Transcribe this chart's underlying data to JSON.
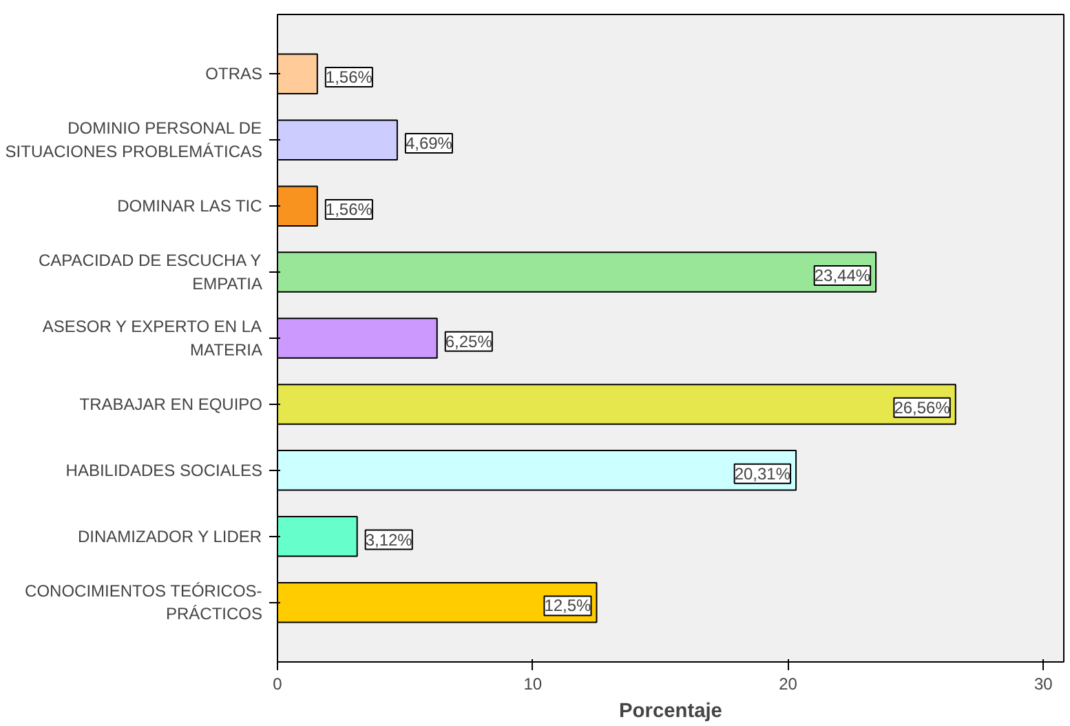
{
  "chart_data": {
    "type": "bar",
    "orientation": "horizontal",
    "xlabel": "Porcentaje",
    "categories": [
      "OTRAS",
      "DOMINIO PERSONAL DE\nSITUACIONES PROBLEMÁTICAS",
      "DOMINAR LAS TIC",
      "CAPACIDAD DE ESCUCHA Y\nEMPATIA",
      "ASESOR Y EXPERTO EN LA\nMATERIA",
      "TRABAJAR EN EQUIPO",
      "HABILIDADES SOCIALES",
      "DINAMIZADOR Y LIDER",
      "CONOCIMIENTOS TEÓRICOS-\nPRÁCTICOS"
    ],
    "values": [
      1.56,
      4.69,
      1.56,
      23.44,
      6.25,
      26.56,
      20.31,
      3.12,
      12.5
    ],
    "colors": [
      "#ffcc99",
      "#ccccff",
      "#f7931e",
      "#99e699",
      "#cc99ff",
      "#e6e64d",
      "#ccffff",
      "#66ffcc",
      "#ffcc00"
    ],
    "value_labels": [
      "1,56%",
      "4,69%",
      "1,56%",
      "23,44%",
      "6,25%",
      "26,56%",
      "20,31%",
      "3,12%",
      "12,5%"
    ],
    "xlim": [
      0,
      30.8
    ],
    "xticks": [
      0,
      10,
      20,
      30
    ],
    "grid": false
  }
}
